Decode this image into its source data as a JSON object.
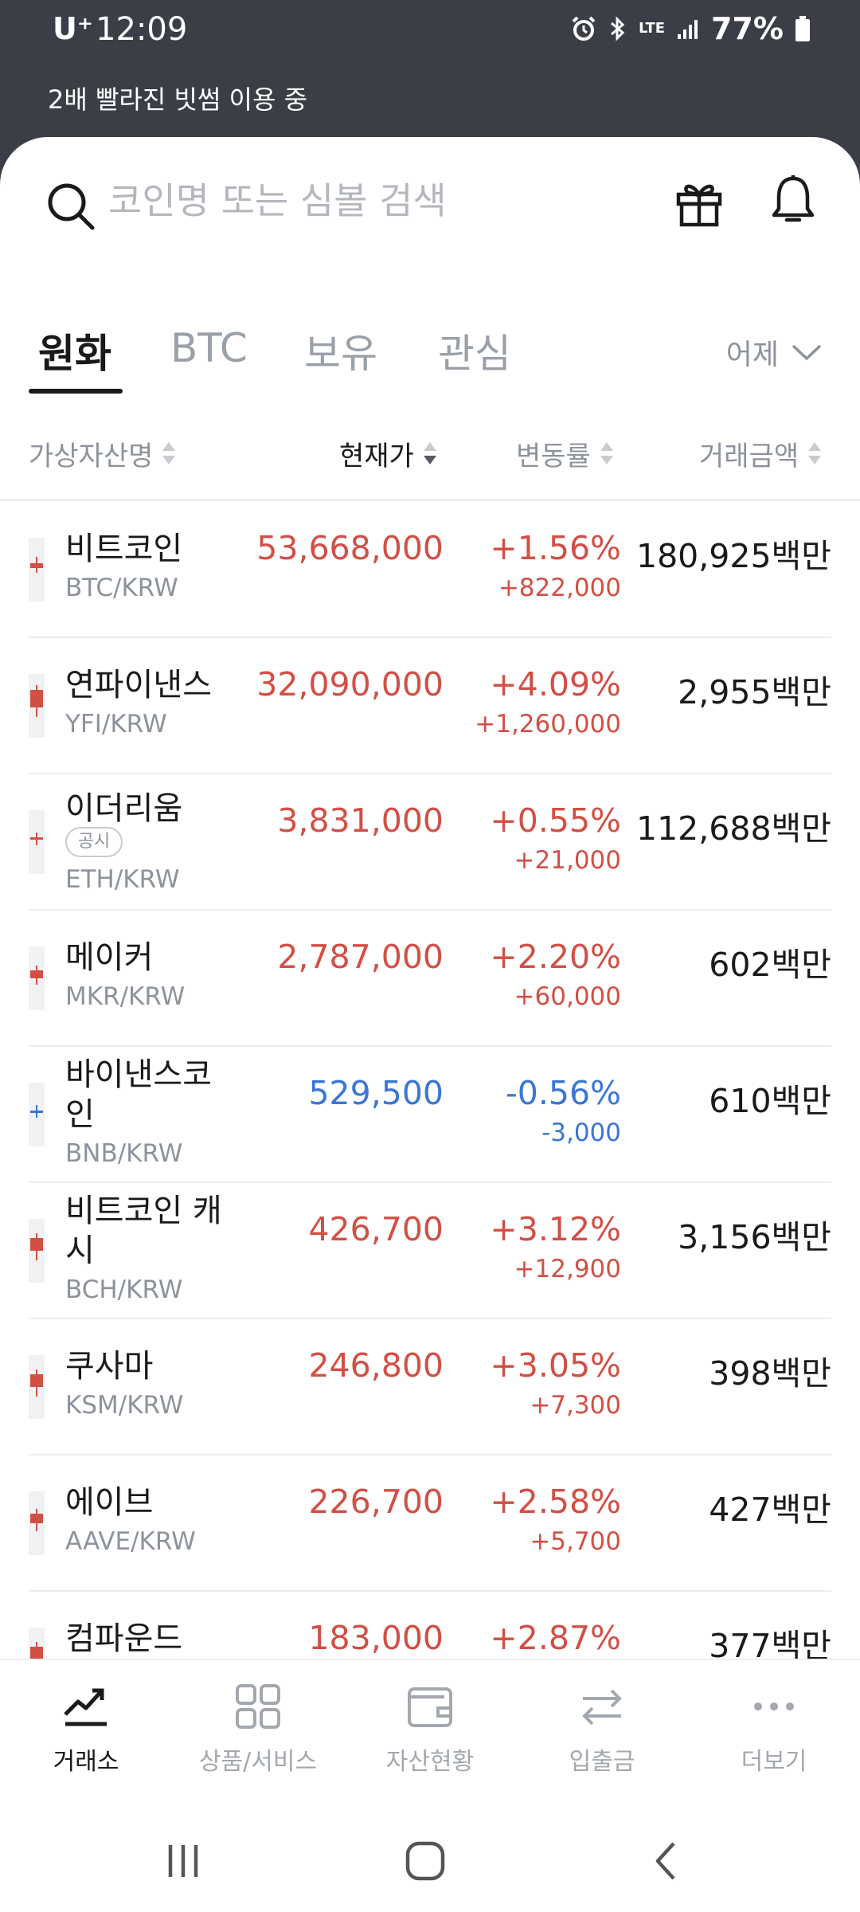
{
  "status_bar": {
    "carrier": "U⁺",
    "time": "12:09",
    "battery": "77%",
    "network": "LTE"
  },
  "banner": "2배 빨라진 빗썸 이용 중",
  "search": {
    "placeholder": "코인명 또는 심볼 검색",
    "value": ""
  },
  "tabs": [
    {
      "label": "원화",
      "active": true
    },
    {
      "label": "BTC",
      "active": false
    },
    {
      "label": "보유",
      "active": false
    },
    {
      "label": "관심",
      "active": false
    }
  ],
  "period_selector": "어제",
  "columns": {
    "name": "가상자산명",
    "price": "현재가",
    "rate": "변동률",
    "volume": "거래금액"
  },
  "coins": [
    {
      "name": "비트코인",
      "symbol": "BTC/KRW",
      "price": "53,668,000",
      "rate": "+1.56%",
      "change": "+822,000",
      "volume": "180,925백만",
      "direction": "up"
    },
    {
      "name": "연파이낸스",
      "symbol": "YFI/KRW",
      "price": "32,090,000",
      "rate": "+4.09%",
      "change": "+1,260,000",
      "volume": "2,955백만",
      "direction": "up"
    },
    {
      "name": "이더리움",
      "symbol": "ETH/KRW",
      "notice": "공시",
      "price": "3,831,000",
      "rate": "+0.55%",
      "change": "+21,000",
      "volume": "112,688백만",
      "direction": "up"
    },
    {
      "name": "메이커",
      "symbol": "MKR/KRW",
      "price": "2,787,000",
      "rate": "+2.20%",
      "change": "+60,000",
      "volume": "602백만",
      "direction": "up"
    },
    {
      "name": "바이낸스코인",
      "symbol": "BNB/KRW",
      "price": "529,500",
      "rate": "-0.56%",
      "change": "-3,000",
      "volume": "610백만",
      "direction": "down"
    },
    {
      "name": "비트코인 캐시",
      "symbol": "BCH/KRW",
      "price": "426,700",
      "rate": "+3.12%",
      "change": "+12,900",
      "volume": "3,156백만",
      "direction": "up"
    },
    {
      "name": "쿠사마",
      "symbol": "KSM/KRW",
      "price": "246,800",
      "rate": "+3.05%",
      "change": "+7,300",
      "volume": "398백만",
      "direction": "up"
    },
    {
      "name": "에이브",
      "symbol": "AAVE/KRW",
      "price": "226,700",
      "rate": "+2.58%",
      "change": "+5,700",
      "volume": "427백만",
      "direction": "up"
    },
    {
      "name": "컴파운드",
      "symbol": "",
      "price": "183,000",
      "rate": "+2.87%",
      "change": "",
      "volume": "377백만",
      "direction": "up"
    }
  ],
  "bottom_nav": [
    {
      "label": "거래소",
      "icon": "chart-trend-icon",
      "active": true
    },
    {
      "label": "상품/서비스",
      "icon": "grid-icon",
      "active": false
    },
    {
      "label": "자산현황",
      "icon": "wallet-icon",
      "active": false
    },
    {
      "label": "입출금",
      "icon": "transfer-arrows-icon",
      "active": false
    },
    {
      "label": "더보기",
      "icon": "more-dots-icon",
      "active": false
    }
  ],
  "colors": {
    "up": "#d24f45",
    "down": "#3a76d6",
    "header_bg": "#3b3e47"
  }
}
